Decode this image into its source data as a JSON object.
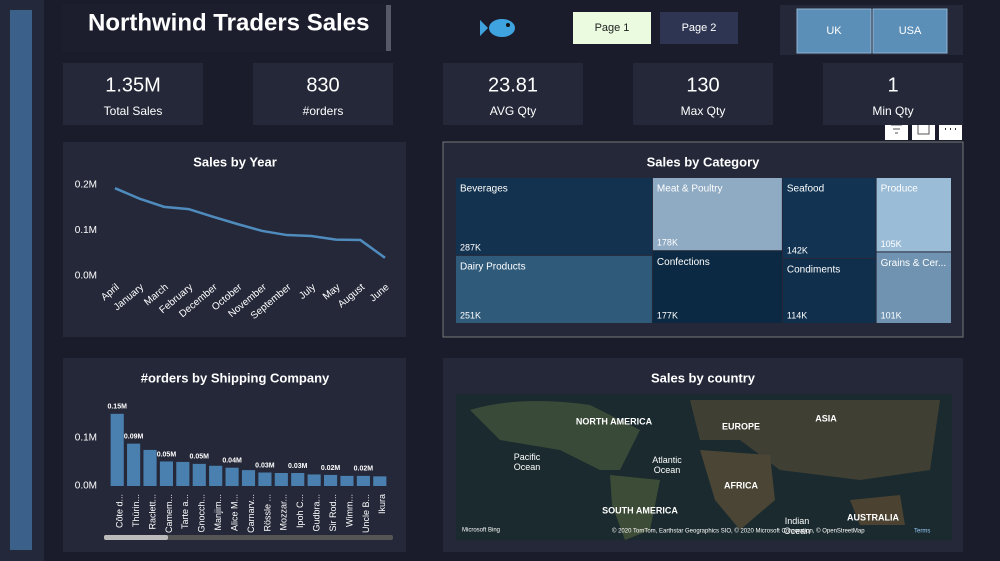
{
  "header": {
    "title": "Northwind Traders Sales",
    "pages": [
      "Page 1",
      "Page 2"
    ],
    "countries": [
      "UK",
      "USA"
    ]
  },
  "kpis": [
    {
      "value": "1.35M",
      "label": "Total Sales"
    },
    {
      "value": "830",
      "label": "#orders"
    },
    {
      "value": "23.81",
      "label": "AVG Qty"
    },
    {
      "value": "130",
      "label": "Max Qty"
    },
    {
      "value": "1",
      "label": "Min Qty"
    }
  ],
  "chart_data": [
    {
      "type": "line",
      "title": "Sales by Year",
      "categories": [
        "April",
        "January",
        "March",
        "February",
        "December",
        "October",
        "November",
        "September",
        "July",
        "May",
        "August",
        "June"
      ],
      "series": [
        {
          "name": "Sales",
          "color": "#4f8cbd",
          "values": [
            0.193,
            0.17,
            0.152,
            0.147,
            0.13,
            0.114,
            0.099,
            0.09,
            0.088,
            0.08,
            0.079,
            0.04
          ]
        }
      ],
      "ylim": [
        0,
        0.2
      ],
      "yticks": [
        {
          "value": 0,
          "label": "0.0M"
        },
        {
          "value": 0.1,
          "label": "0.1M"
        },
        {
          "value": 0.2,
          "label": "0.2M"
        }
      ]
    },
    {
      "type": "treemap",
      "title": "Sales by Category",
      "categories": [
        "Beverages",
        "Dairy Products",
        "Meat & Poultry",
        "Confections",
        "Seafood",
        "Condiments",
        "Produce",
        "Grains & Cer..."
      ],
      "values": [
        287,
        251,
        178,
        177,
        142,
        114,
        105,
        101
      ],
      "value_labels": [
        "287K",
        "251K",
        "178K",
        "177K",
        "142K",
        "114K",
        "105K",
        "101K"
      ],
      "colors": [
        "#12324f",
        "#2f5a7a",
        "#8faac3",
        "#0b2942",
        "#123452",
        "#0f2f4c",
        "#9bbcd6",
        "#6f93b0"
      ]
    },
    {
      "type": "bar",
      "title": "#orders by Shipping Company",
      "categories": [
        "Côte d...",
        "Thürin...",
        "Raclett...",
        "Camem...",
        "Tarte a...",
        "Gnocch...",
        "Manjim...",
        "Alice M...",
        "Carnarv...",
        "Rössle ...",
        "Mozzar...",
        "Ipoh C...",
        "Gudbra...",
        "Sir Rod...",
        "Wimm...",
        "Uncle B...",
        "Ikura"
      ],
      "values": [
        0.15,
        0.088,
        0.075,
        0.051,
        0.05,
        0.046,
        0.042,
        0.038,
        0.033,
        0.028,
        0.027,
        0.027,
        0.024,
        0.023,
        0.021,
        0.021,
        0.02
      ],
      "value_labels": [
        "0.15M",
        "0.09M",
        null,
        "0.05M",
        null,
        "0.05M",
        null,
        "0.04M",
        null,
        "0.03M",
        null,
        "0.03M",
        null,
        "0.02M",
        null,
        "0.02M",
        null
      ],
      "color": "#4a80b0",
      "ylim": [
        0,
        0.16
      ],
      "yticks": [
        {
          "value": 0,
          "label": "0.0M"
        },
        {
          "value": 0.1,
          "label": "0.1M"
        }
      ]
    }
  ],
  "map": {
    "title": "Sales by country",
    "labels": [
      "NORTH AMERICA",
      "EUROPE",
      "ASIA",
      "Pacific Ocean",
      "Atlantic Ocean",
      "AFRICA",
      "SOUTH AMERICA",
      "Indian Ocean",
      "AUSTRALIA"
    ],
    "attribution": "© 2020 TomTom, Earthstar Geographics SIO, © 2020 Microsoft Corporation, © OpenStreetMap",
    "terms": "Terms",
    "brand": "Microsoft Bing"
  }
}
